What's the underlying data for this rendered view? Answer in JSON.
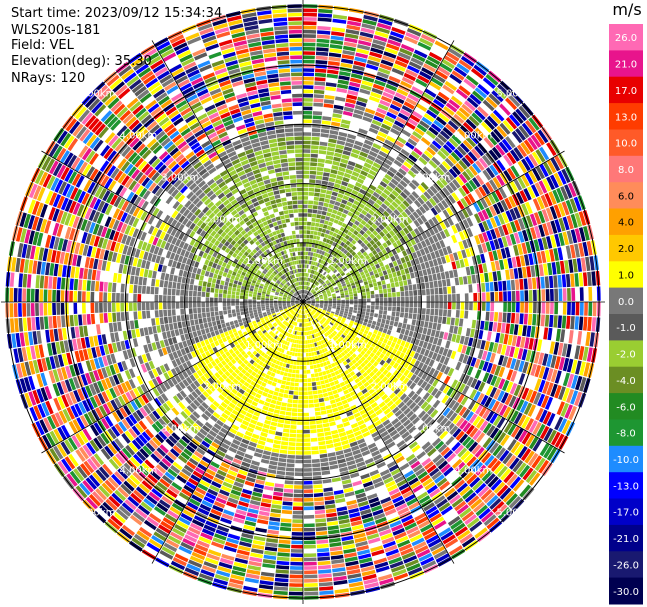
{
  "info": {
    "start_time": "Start time: 2023/09/12 15:34:34",
    "instrument": "WLS200s-181",
    "field": "Field: VEL",
    "elevation": "Elevation(deg): 35.30",
    "nrays": "NRays: 120"
  },
  "chart_data": {
    "type": "heatmap",
    "projection": "polar-ppi",
    "field": "VEL",
    "units": "m/s",
    "n_rays": 120,
    "elevation_deg": 35.3,
    "range_rings_km": [
      1.0,
      2.0,
      3.0,
      4.0,
      5.0
    ],
    "ring_labels": [
      "1.00km",
      "2.00km",
      "3.00km",
      "4.00km",
      "5.00km"
    ],
    "max_range_km": 5.1,
    "colorbar": {
      "unit_label": "m/s",
      "ticks": [
        26.0,
        21.0,
        17.0,
        13.0,
        10.0,
        8.0,
        6.0,
        4.0,
        2.0,
        1.0,
        0.0,
        -1.0,
        -2.0,
        -4.0,
        -6.0,
        -8.0,
        -10.0,
        -13.0,
        -17.0,
        -21.0,
        -26.0,
        -30.0
      ],
      "tick_labels": [
        "26.0",
        "21.0",
        "17.0",
        "13.0",
        "10.0",
        "8.0",
        "6.0",
        "4.0",
        "2.0",
        "1.0",
        "0.0",
        "-1.0",
        "-2.0",
        "-4.0",
        "-6.0",
        "-8.0",
        "-10.0",
        "-13.0",
        "-17.0",
        "-21.0",
        "-26.0",
        "-30.0"
      ],
      "colors": [
        "#ff69b4",
        "#e8148c",
        "#e80000",
        "#ff3c00",
        "#ff5a28",
        "#ff7878",
        "#ff8c5a",
        "#ffa000",
        "#ffc800",
        "#ffff00",
        "#787878",
        "#5a5a5a",
        "#9acd32",
        "#6b8e23",
        "#228b22",
        "#1e9632",
        "#1e8cff",
        "#0000ff",
        "#0000c8",
        "#00008b",
        "#191970",
        "#000050"
      ]
    },
    "signal": {
      "noise_starts_km": 3.2,
      "yellow_band_south_km": [
        0.0,
        2.6
      ],
      "green_region_north_km": [
        0.2,
        2.8
      ]
    }
  }
}
